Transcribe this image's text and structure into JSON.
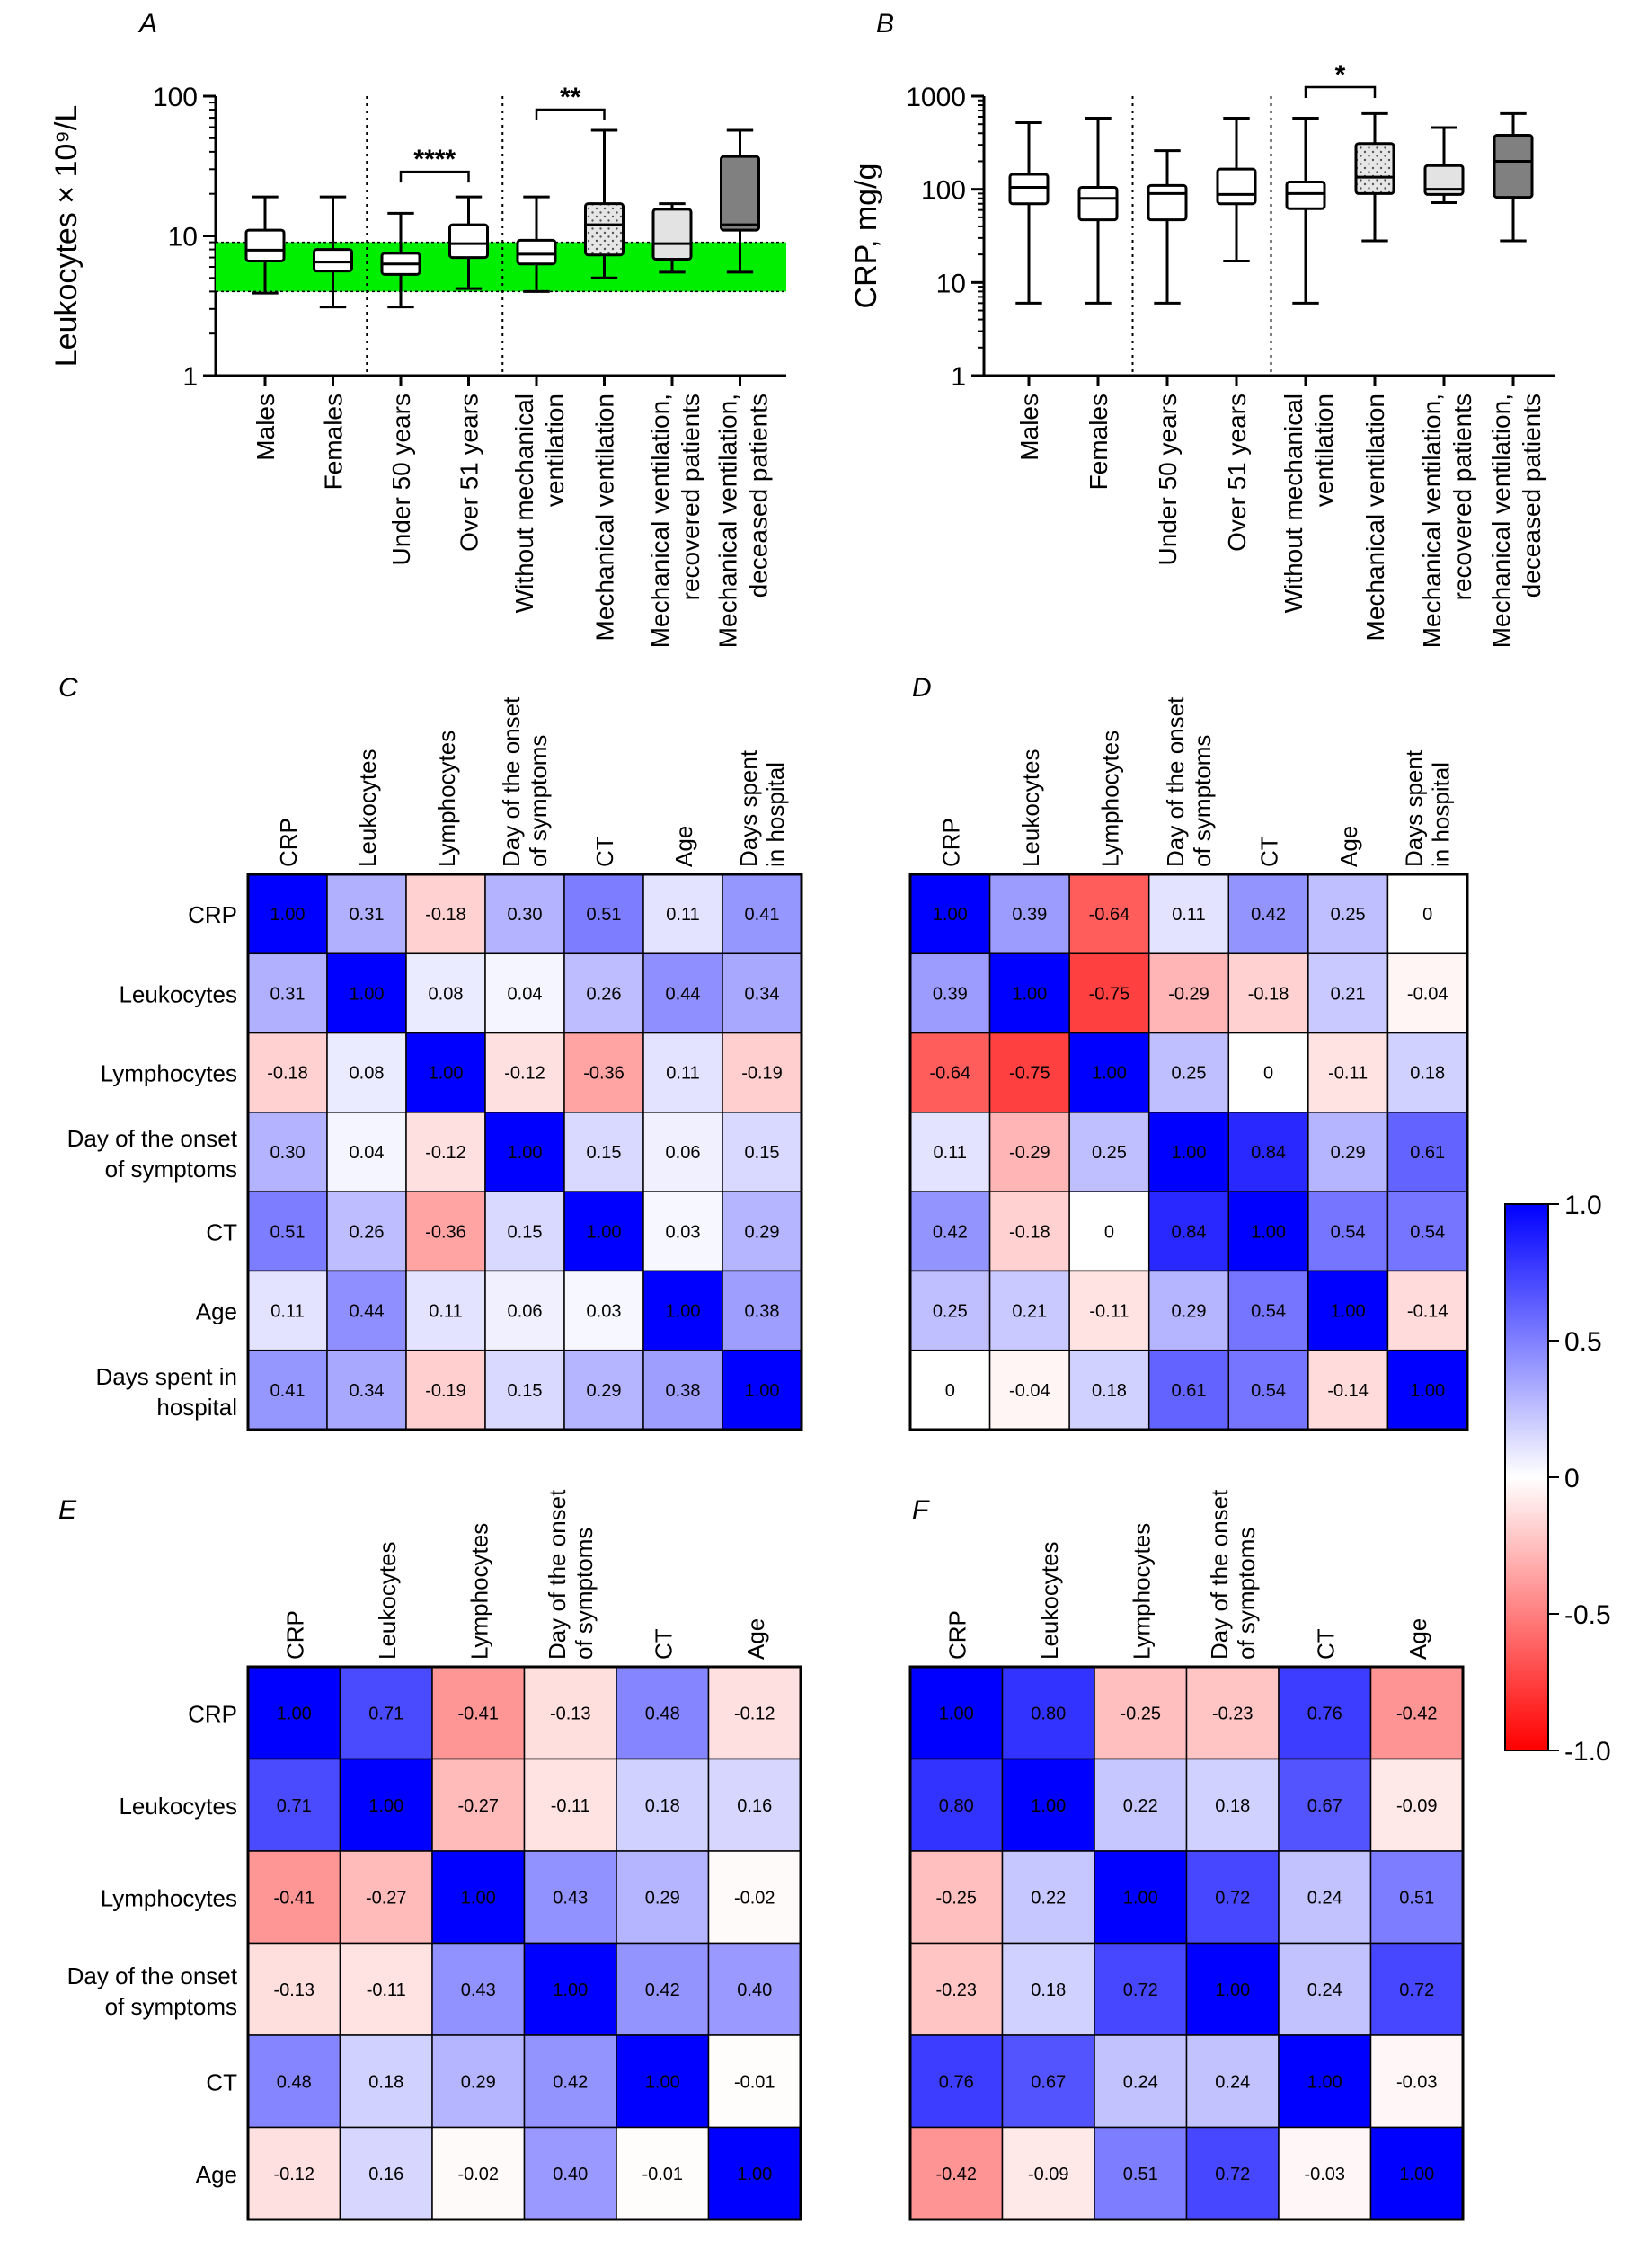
{
  "colors": {
    "positive": "#0000ff",
    "negative": "#ff0000",
    "neutral": "#ffffff",
    "normal_range_band": "#00ee00",
    "box_fill_males_females_age": "#ffffff",
    "box_fill_mech_vent": "#e3e3e3",
    "box_fill_recovered": "#e3e3e3",
    "box_fill_deceased": "#808080"
  },
  "chart_data": [
    {
      "id": "A",
      "panel_label": "A",
      "type": "box",
      "ylabel": "Leukocytes × 10⁹/L",
      "yscale": "log",
      "ylim": [
        1,
        100
      ],
      "yticks": [
        "1",
        "10",
        "100"
      ],
      "categories": [
        "Males",
        "Females",
        "Under 50 years",
        "Over 51 years",
        "Without mechanical ventilation",
        "Mechanical ventilation",
        "Mechanical ventilation, recovered patients",
        "Mechanical ventilation, deceased patients"
      ],
      "category_groups": [
        [
          0,
          1
        ],
        [
          2,
          3
        ],
        [
          4,
          5,
          6,
          7
        ]
      ],
      "normal_range": [
        4,
        9
      ],
      "boxes": [
        {
          "min": 3.9,
          "q1": 6.6,
          "median": 7.9,
          "q3": 11.0,
          "max": 19.0,
          "style": "white"
        },
        {
          "min": 3.1,
          "q1": 5.6,
          "median": 6.5,
          "q3": 8.0,
          "max": 19.0,
          "style": "white"
        },
        {
          "min": 3.1,
          "q1": 5.3,
          "median": 6.3,
          "q3": 7.5,
          "max": 14.5,
          "style": "white"
        },
        {
          "min": 4.2,
          "q1": 7.0,
          "median": 8.8,
          "q3": 12.0,
          "max": 19.0,
          "style": "white"
        },
        {
          "min": 4.0,
          "q1": 6.3,
          "median": 7.4,
          "q3": 9.3,
          "max": 19.0,
          "style": "white"
        },
        {
          "min": 5.0,
          "q1": 7.3,
          "median": 12.0,
          "q3": 17.0,
          "max": 57.0,
          "style": "dotted"
        },
        {
          "min": 5.5,
          "q1": 6.8,
          "median": 8.8,
          "q3": 15.5,
          "max": 17.0,
          "style": "lightgray"
        },
        {
          "min": 5.5,
          "q1": 11.0,
          "median": 12.0,
          "q3": 37.0,
          "max": 57.0,
          "style": "darkgray"
        }
      ],
      "significance": [
        {
          "from": 2,
          "to": 3,
          "label": "****"
        },
        {
          "from": 4,
          "to": 5,
          "label": "**"
        }
      ]
    },
    {
      "id": "B",
      "panel_label": "B",
      "type": "box",
      "ylabel": "CRP, mg/g",
      "yscale": "log",
      "ylim": [
        1,
        1000
      ],
      "yticks": [
        "1",
        "10",
        "100",
        "1000"
      ],
      "categories": [
        "Males",
        "Females",
        "Under 50 years",
        "Over 51 years",
        "Without mechanical ventilation",
        "Mechanical ventilation",
        "Mechanical ventilation, recovered patients",
        "Mechanical ventilation, deceased patients"
      ],
      "category_groups": [
        [
          0,
          1
        ],
        [
          2,
          3
        ],
        [
          4,
          5,
          6,
          7
        ]
      ],
      "boxes": [
        {
          "min": 6,
          "q1": 70,
          "median": 105,
          "q3": 145,
          "max": 520,
          "style": "white"
        },
        {
          "min": 6,
          "q1": 47,
          "median": 80,
          "q3": 105,
          "max": 580,
          "style": "white"
        },
        {
          "min": 6,
          "q1": 47,
          "median": 90,
          "q3": 110,
          "max": 260,
          "style": "white"
        },
        {
          "min": 17,
          "q1": 70,
          "median": 88,
          "q3": 165,
          "max": 580,
          "style": "white"
        },
        {
          "min": 6,
          "q1": 62,
          "median": 90,
          "q3": 120,
          "max": 580,
          "style": "white"
        },
        {
          "min": 28,
          "q1": 90,
          "median": 135,
          "q3": 310,
          "max": 650,
          "style": "dotted"
        },
        {
          "min": 72,
          "q1": 88,
          "median": 100,
          "q3": 180,
          "max": 460,
          "style": "lightgray"
        },
        {
          "min": 28,
          "q1": 82,
          "median": 200,
          "q3": 380,
          "max": 650,
          "style": "darkgray"
        }
      ],
      "significance": [
        {
          "from": 4,
          "to": 5,
          "label": "*"
        }
      ]
    },
    {
      "id": "C",
      "panel_label": "C",
      "type": "heatmap",
      "col_labels": [
        [
          "CRP"
        ],
        [
          "Leukocytes"
        ],
        [
          "Lymphocytes"
        ],
        [
          "Day of the onset",
          "of symptoms"
        ],
        [
          "CT"
        ],
        [
          "Age"
        ],
        [
          "Days spent",
          "in hospital"
        ]
      ],
      "row_labels": [
        [
          "CRP"
        ],
        [
          "Leukocytes"
        ],
        [
          "Lymphocytes"
        ],
        [
          "Day of the onset",
          "of symptoms"
        ],
        [
          "CT"
        ],
        [
          "Age"
        ],
        [
          "Days spent in",
          "hospital"
        ]
      ],
      "values": [
        [
          "1.00",
          "0.31",
          "-0.18",
          "0.30",
          "0.51",
          "0.11",
          "0.41"
        ],
        [
          "0.31",
          "1.00",
          "0.08",
          "0.04",
          "0.26",
          "0.44",
          "0.34"
        ],
        [
          "-0.18",
          "0.08",
          "1.00",
          "-0.12",
          "-0.36",
          "0.11",
          "-0.19"
        ],
        [
          "0.30",
          "0.04",
          "-0.12",
          "1.00",
          "0.15",
          "0.06",
          "0.15"
        ],
        [
          "0.51",
          "0.26",
          "-0.36",
          "0.15",
          "1.00",
          "0.03",
          "0.29"
        ],
        [
          "0.11",
          "0.44",
          "0.11",
          "0.06",
          "0.03",
          "1.00",
          "0.38"
        ],
        [
          "0.41",
          "0.34",
          "-0.19",
          "0.15",
          "0.29",
          "0.38",
          "1.00"
        ]
      ]
    },
    {
      "id": "D",
      "panel_label": "D",
      "type": "heatmap",
      "col_labels": [
        [
          "CRP"
        ],
        [
          "Leukocytes"
        ],
        [
          "Lymphocytes"
        ],
        [
          "Day of the onset",
          "of symptoms"
        ],
        [
          "CT"
        ],
        [
          "Age"
        ],
        [
          "Days spent",
          "in hospital"
        ]
      ],
      "row_labels": [],
      "values": [
        [
          "1.00",
          "0.39",
          "-0.64",
          "0.11",
          "0.42",
          "0.25",
          "0"
        ],
        [
          "0.39",
          "1.00",
          "-0.75",
          "-0.29",
          "-0.18",
          "0.21",
          "-0.04"
        ],
        [
          "-0.64",
          "-0.75",
          "1.00",
          "0.25",
          "0",
          "-0.11",
          "0.18"
        ],
        [
          "0.11",
          "-0.29",
          "0.25",
          "1.00",
          "0.84",
          "0.29",
          "0.61"
        ],
        [
          "0.42",
          "-0.18",
          "0",
          "0.84",
          "1.00",
          "0.54",
          "0.54"
        ],
        [
          "0.25",
          "0.21",
          "-0.11",
          "0.29",
          "0.54",
          "1.00",
          "-0.14"
        ],
        [
          "0",
          "-0.04",
          "0.18",
          "0.61",
          "0.54",
          "-0.14",
          "1.00"
        ]
      ]
    },
    {
      "id": "E",
      "panel_label": "E",
      "type": "heatmap",
      "col_labels": [
        [
          "CRP"
        ],
        [
          "Leukocytes"
        ],
        [
          "Lymphocytes"
        ],
        [
          "Day of the onset",
          "of symptoms"
        ],
        [
          "CT"
        ],
        [
          "Age"
        ]
      ],
      "row_labels": [
        [
          "CRP"
        ],
        [
          "Leukocytes"
        ],
        [
          "Lymphocytes"
        ],
        [
          "Day of the onset",
          "of symptoms"
        ],
        [
          "CT"
        ],
        [
          "Age"
        ]
      ],
      "values": [
        [
          "1.00",
          "0.71",
          "-0.41",
          "-0.13",
          "0.48",
          "-0.12"
        ],
        [
          "0.71",
          "1.00",
          "-0.27",
          "-0.11",
          "0.18",
          "0.16"
        ],
        [
          "-0.41",
          "-0.27",
          "1.00",
          "0.43",
          "0.29",
          "-0.02"
        ],
        [
          "-0.13",
          "-0.11",
          "0.43",
          "1.00",
          "0.42",
          "0.40"
        ],
        [
          "0.48",
          "0.18",
          "0.29",
          "0.42",
          "1.00",
          "-0.01"
        ],
        [
          "-0.12",
          "0.16",
          "-0.02",
          "0.40",
          "-0.01",
          "1.00"
        ]
      ]
    },
    {
      "id": "F",
      "panel_label": "F",
      "type": "heatmap",
      "col_labels": [
        [
          "CRP"
        ],
        [
          "Leukocytes"
        ],
        [
          "Lymphocytes"
        ],
        [
          "Day of the onset",
          "of symptoms"
        ],
        [
          "CT"
        ],
        [
          "Age"
        ]
      ],
      "row_labels": [],
      "values": [
        [
          "1.00",
          "0.80",
          "-0.25",
          "-0.23",
          "0.76",
          "-0.42"
        ],
        [
          "0.80",
          "1.00",
          "0.22",
          "0.18",
          "0.67",
          "-0.09"
        ],
        [
          "-0.25",
          "0.22",
          "1.00",
          "0.72",
          "0.24",
          "0.51"
        ],
        [
          "-0.23",
          "0.18",
          "0.72",
          "1.00",
          "0.24",
          "0.72"
        ],
        [
          "0.76",
          "0.67",
          "0.24",
          "0.24",
          "1.00",
          "-0.03"
        ],
        [
          "-0.42",
          "-0.09",
          "0.51",
          "0.72",
          "-0.03",
          "1.00"
        ]
      ]
    }
  ],
  "colorbar": {
    "range": [
      -1,
      1
    ],
    "ticks": [
      "1.0",
      "0.5",
      "0",
      "-0.5",
      "-1.0"
    ],
    "tick_values": [
      1,
      0.5,
      0,
      -0.5,
      -1
    ]
  }
}
